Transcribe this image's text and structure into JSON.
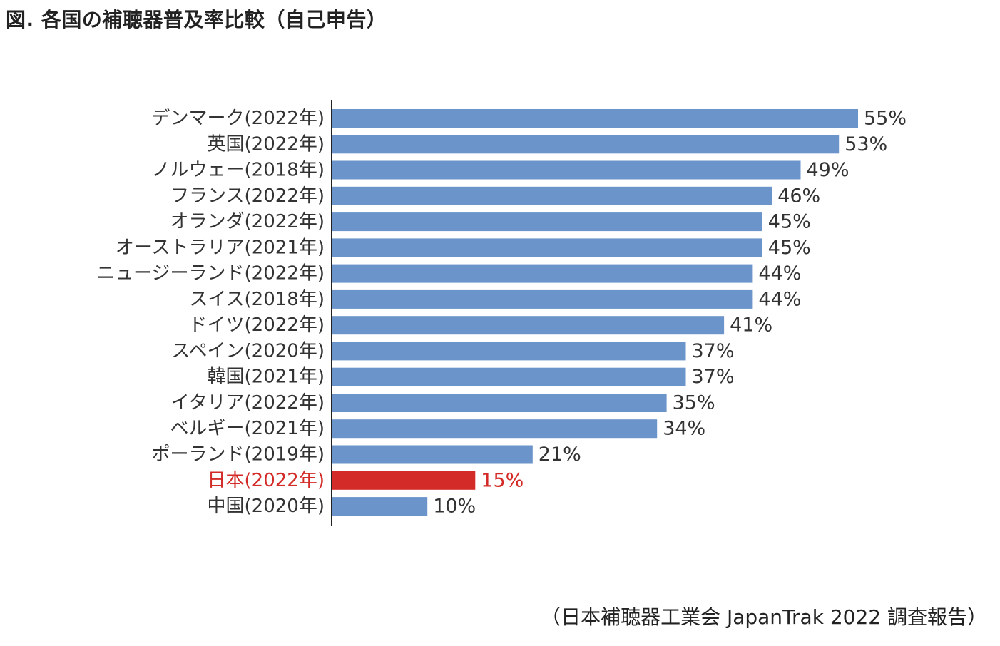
{
  "title": "図. 各国の補聴器普及率比較（自己申告）",
  "source": "（日本補聴器工業会 JapanTrak 2022 調査報告）",
  "colors": {
    "bar": "#6a94ca",
    "highlight": "#d32b27",
    "text": "#333333",
    "axis": "#222222"
  },
  "chart_data": {
    "type": "bar",
    "orientation": "horizontal",
    "title": "図. 各国の補聴器普及率比較（自己申告）",
    "xlabel": "",
    "ylabel": "",
    "xlim": [
      0,
      55
    ],
    "grid": false,
    "unit": "%",
    "highlight": "日本(2022年)",
    "categories": [
      "デンマーク(2022年)",
      "英国(2022年)",
      "ノルウェー(2018年)",
      "フランス(2022年)",
      "オランダ(2022年)",
      "オーストラリア(2021年)",
      "ニュージーランド(2022年)",
      "スイス(2018年)",
      "ドイツ(2022年)",
      "スペイン(2020年)",
      "韓国(2021年)",
      "イタリア(2022年)",
      "ベルギー(2021年)",
      "ポーランド(2019年)",
      "日本(2022年)",
      "中国(2020年)"
    ],
    "values": [
      55,
      53,
      49,
      46,
      45,
      45,
      44,
      44,
      41,
      37,
      37,
      35,
      34,
      21,
      15,
      10
    ],
    "value_labels": [
      "55%",
      "53%",
      "49%",
      "46%",
      "45%",
      "45%",
      "44%",
      "44%",
      "41%",
      "37%",
      "37%",
      "35%",
      "34%",
      "21%",
      "15%",
      "10%"
    ]
  }
}
